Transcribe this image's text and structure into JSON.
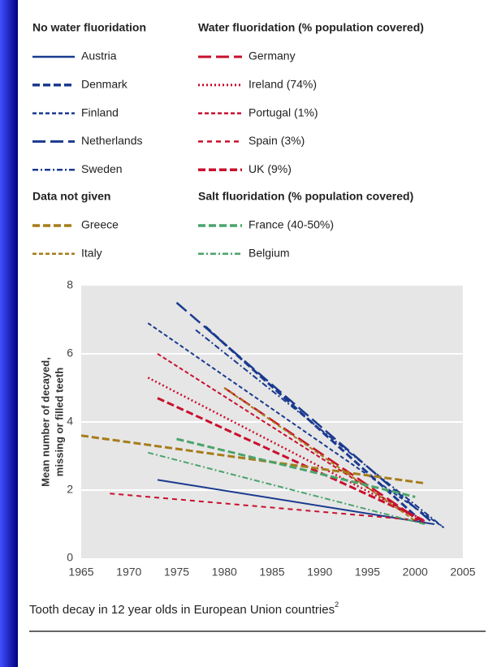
{
  "chart_data": {
    "type": "line",
    "caption": "Tooth decay in 12 year olds in European Union countries",
    "caption_ref": "2",
    "ylabel": [
      "Mean number of decayed,",
      "missing or filled teeth"
    ],
    "xlim": [
      1965,
      2005
    ],
    "xticks": [
      1965,
      1970,
      1975,
      1980,
      1985,
      1990,
      1995,
      2000,
      2005
    ],
    "ylim": [
      0,
      8
    ],
    "yticks": [
      0,
      2,
      4,
      6,
      8
    ],
    "grid": true,
    "groups": [
      {
        "title": "No water fluoridation",
        "series": [
          {
            "name": "Austria",
            "color": "#1a3a8f",
            "style": "solid",
            "x": [
              1973,
              2002
            ],
            "values": [
              2.3,
              1.0
            ]
          },
          {
            "name": "Denmark",
            "color": "#1a3a8f",
            "style": "heavy-dash",
            "x": [
              1978,
              2001
            ],
            "values": [
              6.8,
              1.0
            ]
          },
          {
            "name": "Finland",
            "color": "#1a3a8f",
            "style": "dash",
            "x": [
              1972,
              2003
            ],
            "values": [
              6.9,
              0.9
            ]
          },
          {
            "name": "Netherlands",
            "color": "#1a3a8f",
            "style": "long-dash",
            "x": [
              1975,
              2002
            ],
            "values": [
              7.5,
              1.0
            ]
          },
          {
            "name": "Sweden",
            "color": "#1a3a8f",
            "style": "dash-dot",
            "x": [
              1977,
              2003
            ],
            "values": [
              6.7,
              0.9
            ]
          }
        ]
      },
      {
        "title": "Water fluoridation (% population covered)",
        "series": [
          {
            "name": "Germany",
            "color": "#c8102e",
            "style": "long-dash",
            "x": [
              1980,
              2000
            ],
            "values": [
              5.0,
              1.2
            ]
          },
          {
            "name": "Ireland (74%)",
            "color": "#c8102e",
            "style": "dot",
            "x": [
              1972,
              2001
            ],
            "values": [
              5.3,
              1.1
            ]
          },
          {
            "name": "Portugal (1%)",
            "color": "#c8102e",
            "style": "dash",
            "x": [
              1973,
              2001
            ],
            "values": [
              6.0,
              1.0
            ]
          },
          {
            "name": "Spain (3%)",
            "color": "#c8102e",
            "style": "short-dash",
            "x": [
              1968,
              2001
            ],
            "values": [
              1.9,
              1.1
            ]
          },
          {
            "name": "UK (9%)",
            "color": "#c8102e",
            "style": "heavy-dash",
            "x": [
              1973,
              2001
            ],
            "values": [
              4.7,
              1.1
            ]
          }
        ]
      },
      {
        "title": "Data not given",
        "series": [
          {
            "name": "Greece",
            "color": "#a67c1a",
            "style": "heavy-dash",
            "x": [
              1965,
              2001
            ],
            "values": [
              3.6,
              2.2
            ]
          },
          {
            "name": "Italy",
            "color": "#a67c1a",
            "style": "dash",
            "x": [
              1980,
              2000
            ],
            "values": [
              5.0,
              1.1
            ]
          }
        ]
      },
      {
        "title": "Salt fluoridation (% population covered)",
        "series": [
          {
            "name": "France (40-50%)",
            "color": "#4aa36b",
            "style": "heavy-dash",
            "x": [
              1975,
              2000
            ],
            "values": [
              3.5,
              1.8
            ]
          },
          {
            "name": "Belgium",
            "color": "#4aa36b",
            "style": "dash-dot",
            "x": [
              1972,
              2001
            ],
            "values": [
              3.1,
              1.0
            ]
          }
        ]
      }
    ]
  }
}
